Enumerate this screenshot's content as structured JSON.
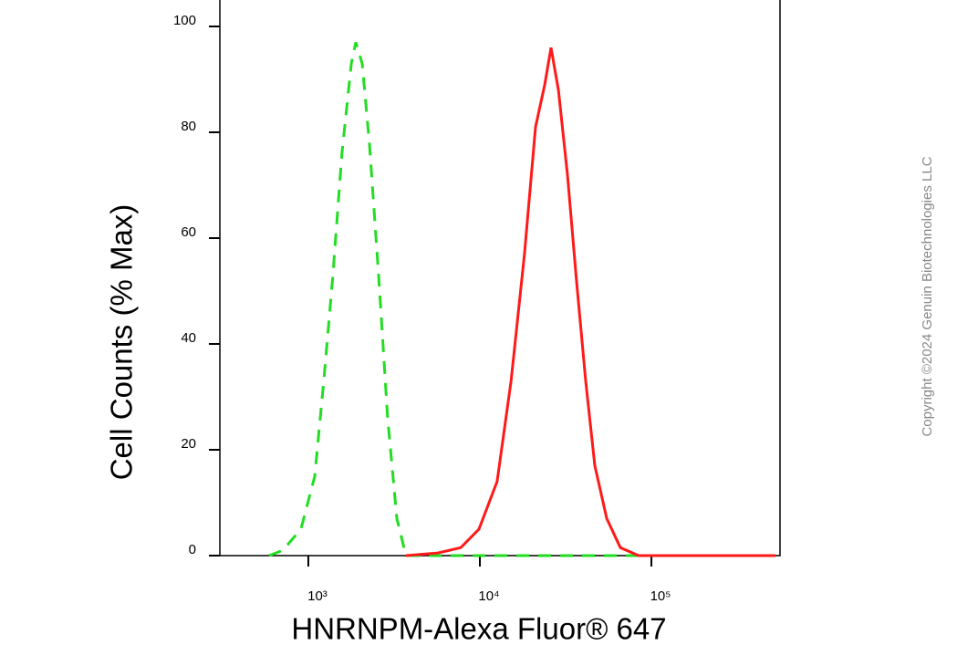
{
  "chart_data": {
    "type": "line",
    "x_label": "HNRNPM-Alexa Fluor® 647",
    "y_label": "Cell Counts (% Max)",
    "watermark": "Copyright ©2024 Genuin Biotechnologies LLC",
    "xscale": "log",
    "xlim": [
      305,
      562000
    ],
    "ylim": [
      0,
      105
    ],
    "xticks": [
      {
        "value": 1000,
        "label": "10³"
      },
      {
        "value": 10000,
        "label": "10⁴"
      },
      {
        "value": 100000,
        "label": "10⁵"
      }
    ],
    "yticks": [
      0,
      20,
      40,
      60,
      80,
      100
    ],
    "series": [
      {
        "color": "#22dd22",
        "dash": true,
        "x": [
          590,
          710,
          906,
          1090,
          1230,
          1390,
          1570,
          1780,
          1890,
          2060,
          2270,
          2570,
          2900,
          3280,
          3710,
          528000
        ],
        "values": [
          0,
          1,
          5,
          15,
          33,
          53,
          76,
          93,
          97,
          93,
          78,
          53,
          26,
          7,
          0,
          0
        ]
      },
      {
        "color": "#ff1a1a",
        "dash": false,
        "x": [
          3710,
          5690,
          7730,
          9880,
          12600,
          15200,
          18200,
          21100,
          23900,
          26000,
          28700,
          32400,
          36600,
          41400,
          46800,
          54900,
          65900,
          84300,
          528000
        ],
        "values": [
          0,
          0.5,
          1.5,
          5,
          14,
          33,
          57,
          81,
          89,
          96,
          88,
          72,
          52,
          33,
          17,
          7,
          1.5,
          0,
          0
        ]
      }
    ]
  }
}
